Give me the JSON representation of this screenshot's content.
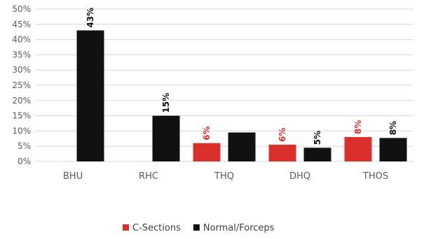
{
  "chart_data": {
    "type": "bar",
    "title": "",
    "xlabel": "",
    "ylabel": "",
    "ylim": [
      0,
      50
    ],
    "y_ticks": [
      "0%",
      "5%",
      "10%",
      "15%",
      "20%",
      "25%",
      "30%",
      "35%",
      "40%",
      "45%",
      "50%"
    ],
    "grid": true,
    "legend_position": "bottom",
    "categories": [
      "BHU",
      "RHC",
      "THQ",
      "DHQ",
      "THOS"
    ],
    "series": [
      {
        "name": "C-Sections",
        "color": "#d9302c",
        "values": [
          null,
          null,
          6,
          5.5,
          8
        ],
        "labels": [
          "",
          "",
          "6%",
          "6%",
          "8%"
        ]
      },
      {
        "name": "Normal/Forceps",
        "color": "#111111",
        "values": [
          43,
          15,
          9.5,
          4.5,
          7.7
        ],
        "labels": [
          "43%",
          "15%",
          "",
          "5%",
          "8%"
        ]
      }
    ]
  }
}
